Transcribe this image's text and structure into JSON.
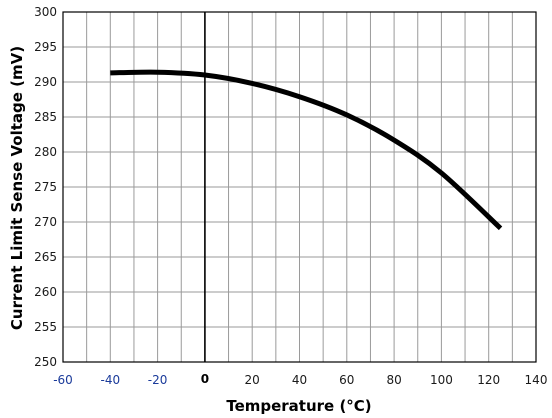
{
  "chart_data": {
    "type": "line",
    "xlabel": "Temperature (°C)",
    "ylabel": "Current Limit Sense Voltage (mV)",
    "xlim": [
      -60,
      140
    ],
    "ylim": [
      250,
      300
    ],
    "grid": true,
    "x_major_step": 20,
    "y_major_step": 5,
    "x_minor_per_major": 2,
    "x_ticks": [
      -60,
      -40,
      -20,
      0,
      20,
      40,
      60,
      80,
      100,
      120,
      140
    ],
    "y_ticks": [
      250,
      255,
      260,
      265,
      270,
      275,
      280,
      285,
      290,
      295,
      300
    ],
    "x_tick_labels": [
      "-60",
      "-40",
      "-20",
      "0",
      "20",
      "40",
      "60",
      "80",
      "100",
      "120",
      "140"
    ],
    "y_tick_labels": [
      "250",
      "255",
      "260",
      "265",
      "270",
      "275",
      "280",
      "285",
      "290",
      "295",
      "300"
    ],
    "series": [
      {
        "x": [
          -40,
          -20,
          0,
          20,
          40,
          60,
          80,
          100,
          125
        ],
        "values": [
          291.3,
          291.4,
          291.0,
          289.8,
          287.9,
          285.3,
          281.7,
          277.0,
          269.1
        ]
      }
    ],
    "colors": {
      "line": "#000000",
      "grid": "#9a9a9a",
      "frame": "#000000",
      "zero_line": "#000000",
      "tick_label": "#1a1a1a",
      "neg_tick_label": "#1a3a9a"
    }
  }
}
